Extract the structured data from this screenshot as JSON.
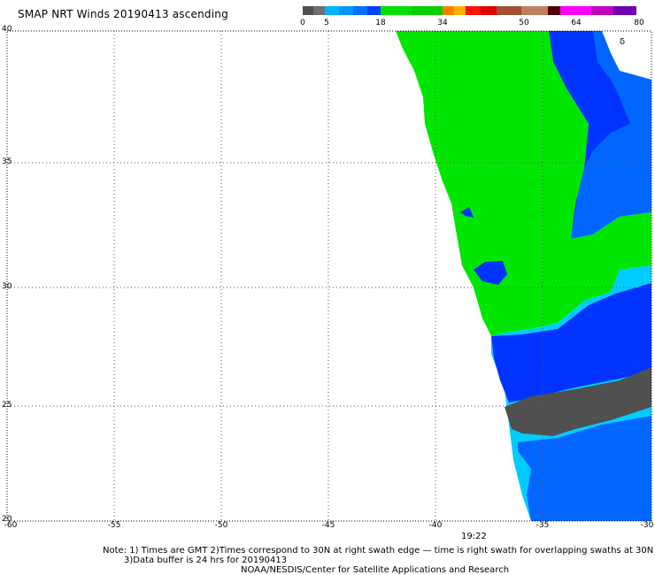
{
  "title": "SMAP NRT Winds 20190413 ascending",
  "colorbar": {
    "labels": [
      "0",
      "5",
      "18",
      "34",
      "50",
      "64",
      "80"
    ],
    "colors": [
      "#505050",
      "#707070",
      "#00b4ff",
      "#0096ff",
      "#0070ff",
      "#0040ff",
      "#00e000",
      "#00d000",
      "#ff8000",
      "#ffb000",
      "#ff1000",
      "#e00000",
      "#a05030",
      "#c08060",
      "#500000",
      "#ff00ff",
      "#c000c0",
      "#7000b0"
    ]
  },
  "lat_labels": [
    "40",
    "35",
    "30",
    "25",
    "20"
  ],
  "lon_labels": [
    "-60",
    "-55",
    "-50",
    "-45",
    "-40",
    "-35",
    "-30"
  ],
  "time_label": "19:22",
  "symbol": "δ",
  "notes": {
    "line1": "Note: 1) Times are GMT 2)Times correspond to 30N at right swath edge — time is right swath for overlapping swaths at 30N",
    "line2": "3)Data buffer is 24 hrs for 20190413",
    "line3": "NOAA/NESDIS/Center for Satellite Applications and Research"
  },
  "map": {
    "lat_range": [
      20,
      40
    ],
    "lon_range": [
      -60,
      -30
    ],
    "colors": {
      "green": "#00e600",
      "green_light": "#10f010",
      "blue": "#0033ff",
      "blue_mid": "#0066ff",
      "cyan": "#00ccff",
      "gray": "#505050",
      "gray_dark": "#3a3a3a"
    }
  }
}
